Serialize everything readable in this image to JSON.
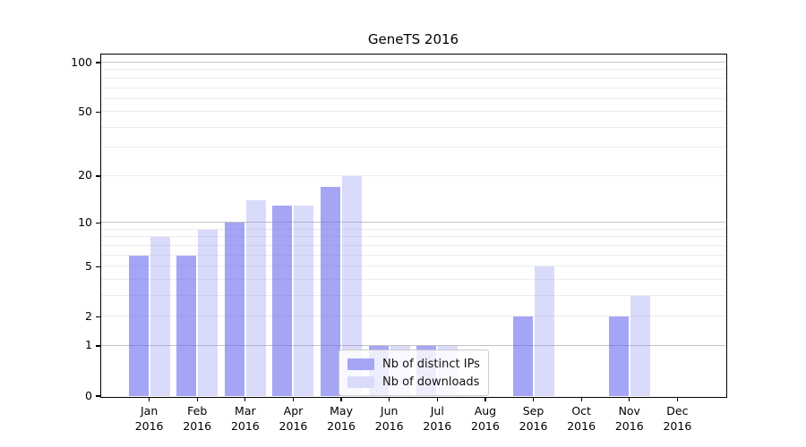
{
  "chart_data": {
    "type": "bar",
    "title": "GeneTS 2016",
    "x_categories": [
      "Jan",
      "Feb",
      "Mar",
      "Apr",
      "May",
      "Jun",
      "Jul",
      "Aug",
      "Sep",
      "Oct",
      "Nov",
      "Dec"
    ],
    "x_year": "2016",
    "series": [
      {
        "name": "Nb of distinct IPs",
        "fill": "rgba(110,110,240,0.62)",
        "legend_fill": "#a5a5f6",
        "values": [
          6,
          6,
          10,
          13,
          17,
          1,
          1,
          0,
          2,
          0,
          2,
          0
        ]
      },
      {
        "name": "Nb of downloads",
        "fill": "rgba(140,140,240,0.32)",
        "legend_fill": "#dadaf9",
        "values": [
          8,
          9,
          14,
          13,
          20,
          1,
          1,
          0,
          5,
          0,
          3,
          0
        ]
      }
    ],
    "y_scale": "log10(1+v)",
    "y_ticks": [
      0,
      1,
      2,
      5,
      10,
      20,
      50,
      100
    ],
    "y_max": 100,
    "grid": {
      "major": [
        1,
        10,
        100
      ],
      "minor": [
        2,
        3,
        4,
        5,
        6,
        7,
        8,
        9,
        20,
        30,
        40,
        50,
        60,
        70,
        80,
        90
      ]
    },
    "legend_position": "lower center",
    "colors": {
      "bar_ips": "#a5a5f6",
      "bar_downloads": "#dadaf9",
      "grid_major": "#c0c0c0",
      "grid_minor": "#ececec"
    }
  }
}
